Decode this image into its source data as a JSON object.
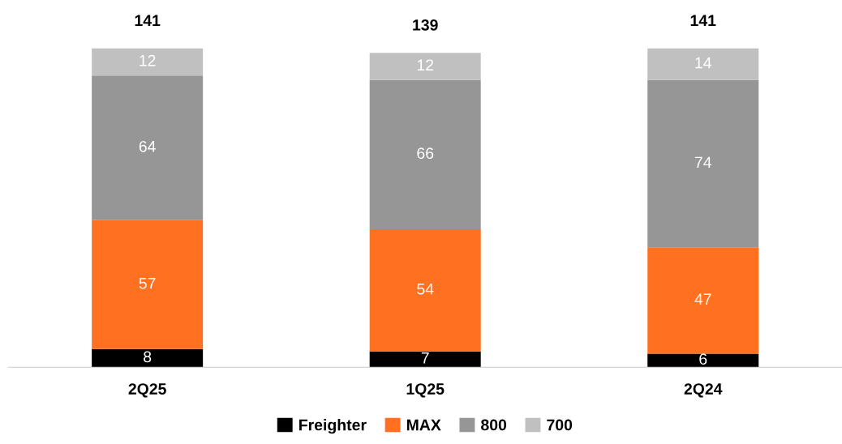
{
  "chart_data": {
    "type": "bar",
    "stacked": true,
    "categories": [
      "2Q25",
      "1Q25",
      "2Q24"
    ],
    "series": [
      {
        "name": "Freighter",
        "color": "#000000",
        "values": [
          8,
          7,
          6
        ]
      },
      {
        "name": "MAX",
        "color": "#ff7020",
        "values": [
          57,
          54,
          47
        ]
      },
      {
        "name": "800",
        "color": "#969696",
        "values": [
          64,
          66,
          74
        ]
      },
      {
        "name": "700",
        "color": "#c0c0c0",
        "values": [
          12,
          12,
          14
        ]
      }
    ],
    "data_labels": true,
    "totals": [
      "141",
      "139",
      "141"
    ],
    "legend": "bottom",
    "grid": false
  }
}
